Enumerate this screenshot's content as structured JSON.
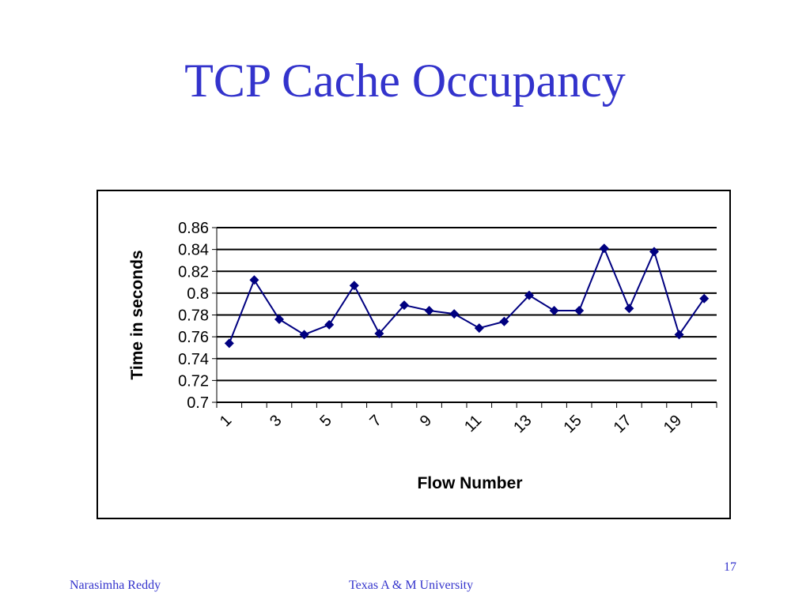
{
  "slide": {
    "title": "TCP Cache Occupancy",
    "page_number": "17"
  },
  "footer": {
    "author": "Narasimha Reddy",
    "organization": "Texas A & M University"
  },
  "colors": {
    "title": "#3333cc",
    "series": "#000080",
    "axis": "#000000"
  },
  "chart_data": {
    "type": "line",
    "xlabel": "Flow Number",
    "ylabel": "Time in seconds",
    "x": [
      1,
      2,
      3,
      4,
      5,
      6,
      7,
      8,
      9,
      10,
      11,
      12,
      13,
      14,
      15,
      16,
      17,
      18,
      19,
      20
    ],
    "x_tick_labels": [
      "1",
      "3",
      "5",
      "7",
      "9",
      "11",
      "13",
      "15",
      "17",
      "19"
    ],
    "y_tick_labels": [
      "0.86",
      "0.84",
      "0.82",
      "0.8",
      "0.78",
      "0.76",
      "0.74",
      "0.72",
      "0.7"
    ],
    "ylim": [
      0.7,
      0.86
    ],
    "y_step": 0.02,
    "grid": "horizontal",
    "legend": "none",
    "marker": "diamond",
    "series": [
      {
        "values": [
          0.754,
          0.812,
          0.776,
          0.762,
          0.771,
          0.807,
          0.763,
          0.789,
          0.784,
          0.781,
          0.768,
          0.774,
          0.798,
          0.784,
          0.784,
          0.841,
          0.786,
          0.838,
          0.762,
          0.795
        ]
      }
    ]
  }
}
